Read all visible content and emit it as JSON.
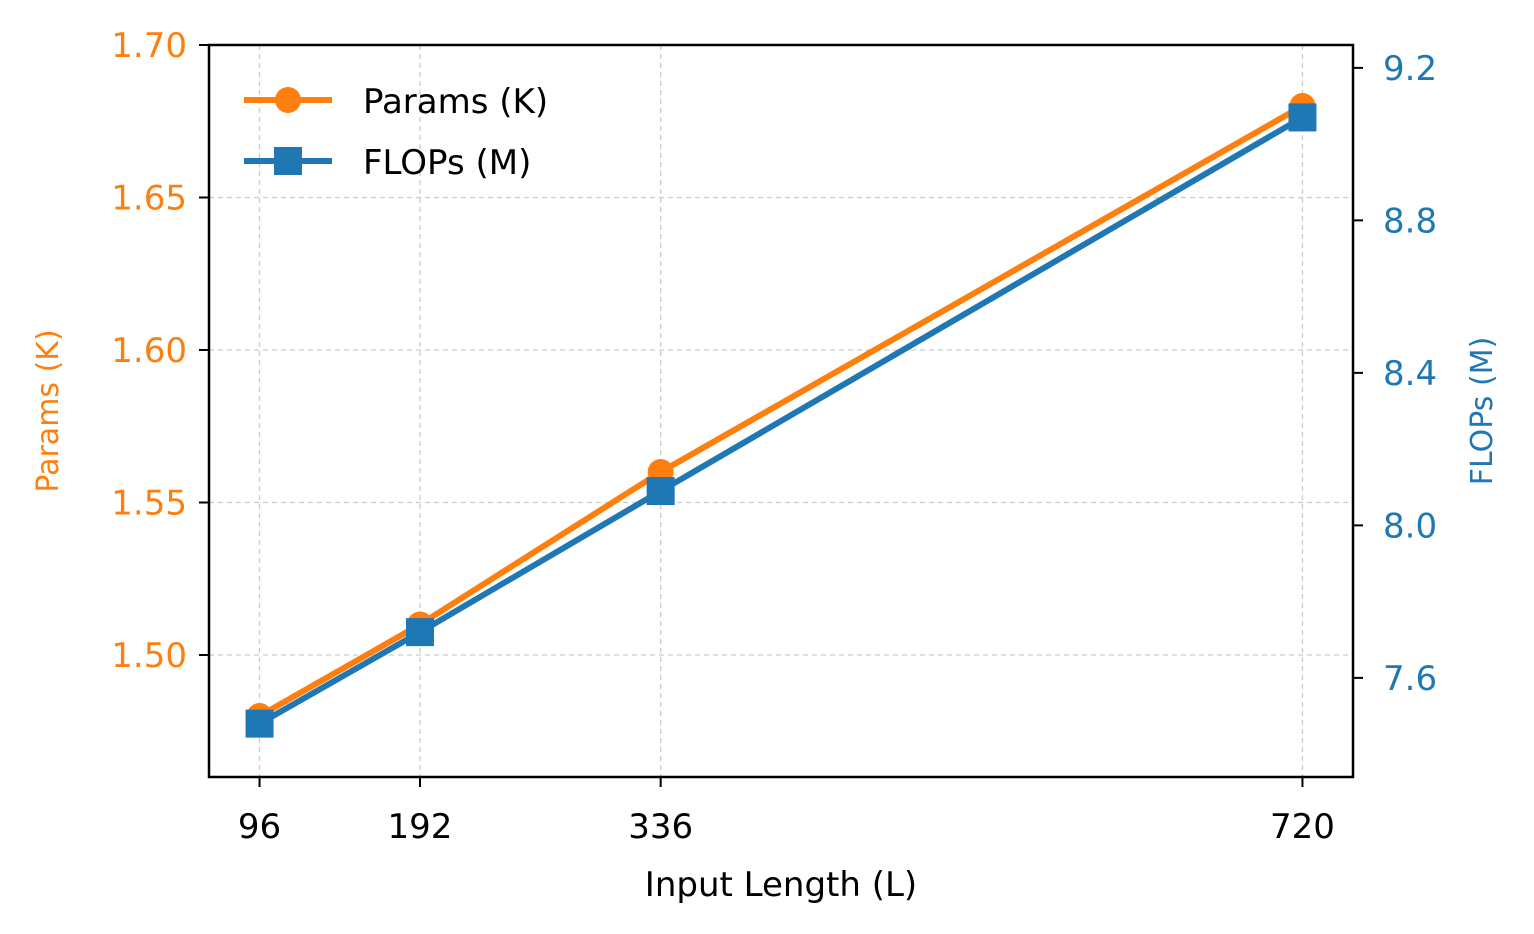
{
  "chart_data": {
    "type": "line",
    "x": [
      96,
      192,
      336,
      720
    ],
    "xticks": [
      "96",
      "192",
      "336",
      "720"
    ],
    "xlabel": "Input Length (L)",
    "grid": true,
    "legend_position": "top-left",
    "axes": {
      "left": {
        "label": "Params (K)",
        "ylim": [
          1.46,
          1.7
        ],
        "ticks": [
          1.5,
          1.55,
          1.6,
          1.65,
          1.7
        ],
        "tick_labels": [
          "1.50",
          "1.55",
          "1.60",
          "1.65",
          "1.70"
        ],
        "color": "#ff7f0e"
      },
      "right": {
        "label": "FLOPs (M)",
        "ylim": [
          7.34,
          9.26
        ],
        "ticks": [
          7.6,
          8.0,
          8.4,
          8.8,
          9.2
        ],
        "tick_labels": [
          "7.6",
          "8.0",
          "8.4",
          "8.8",
          "9.2"
        ],
        "color": "#1f77b4"
      }
    },
    "series": [
      {
        "name": "Params (K)",
        "axis": "left",
        "marker": "circle",
        "color": "#ff7f0e",
        "values": [
          1.48,
          1.51,
          1.56,
          1.68
        ]
      },
      {
        "name": "FLOPs (M)",
        "axis": "right",
        "marker": "square",
        "color": "#1f77b4",
        "values": [
          7.48,
          7.72,
          8.09,
          9.07
        ]
      }
    ]
  }
}
